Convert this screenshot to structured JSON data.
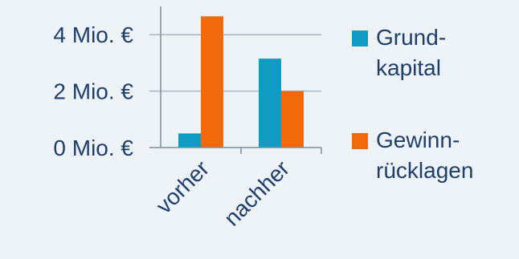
{
  "chart_data": {
    "type": "bar",
    "categories": [
      "vorher",
      "nachher"
    ],
    "series": [
      {
        "name": "Grundkapital",
        "legend_lines": [
          "Grund-",
          "kapital"
        ],
        "color": "#0f9bc3",
        "values": [
          0.5,
          3.15
        ]
      },
      {
        "name": "Gewinnrücklagen",
        "legend_lines": [
          "Gewinn-",
          "rücklagen"
        ],
        "color": "#f06a0c",
        "values": [
          4.65,
          2.0
        ]
      }
    ],
    "y_ticks": [
      {
        "value": 0,
        "label": "0 Mio. €"
      },
      {
        "value": 2,
        "label": "2 Mio. €"
      },
      {
        "value": 4,
        "label": "4 Mio. €"
      }
    ],
    "ylim": [
      0,
      5
    ],
    "grid": true,
    "legend_position": "right",
    "colors": {
      "axis": "#7d8da3",
      "grid": "#a9b6c6",
      "text": "#1f3f6b",
      "background": "#eef3f8"
    }
  }
}
